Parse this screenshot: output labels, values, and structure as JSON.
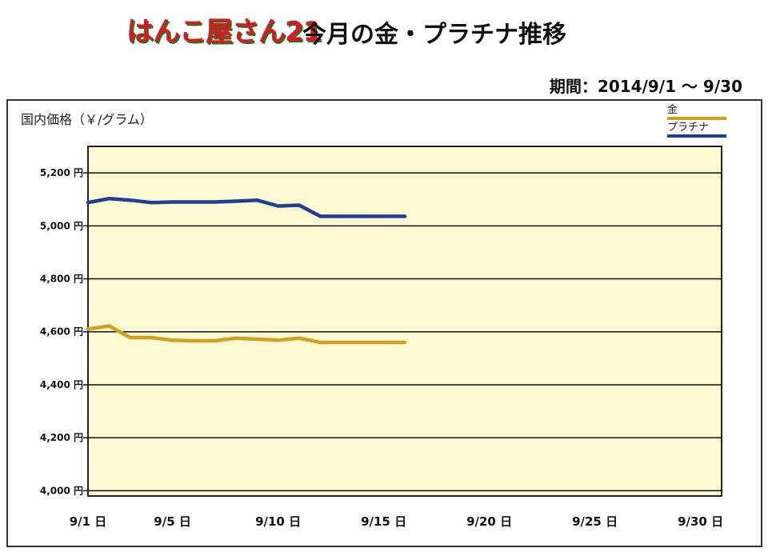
{
  "header": {
    "logo_text": "はんこ屋さん21",
    "title": "今月の金・プラチナ推移"
  },
  "period": "期間：2014/9/1 ～ 9/30",
  "chart_data": {
    "type": "line",
    "ylabel": "国内価格（￥/グラム）",
    "ylim": [
      3980,
      5300
    ],
    "y_ticks": [
      4000,
      4200,
      4400,
      4600,
      4800,
      5000,
      5200
    ],
    "y_tick_labels": [
      "4,000 円",
      "4,200 円",
      "4,400 円",
      "4,600 円",
      "4,800 円",
      "5,000 円",
      "5,200 円"
    ],
    "x_range": [
      1,
      31
    ],
    "x_ticks": [
      1,
      5,
      10,
      15,
      20,
      25,
      30
    ],
    "x_tick_labels": [
      "9/1 日",
      "9/5 日",
      "9/10 日",
      "9/15 日",
      "9/20 日",
      "9/25 日",
      "9/30 日"
    ],
    "grid": true,
    "legend_position": "top-right",
    "series": [
      {
        "name": "金",
        "color": "#d2a021",
        "x": [
          1,
          2,
          3,
          4,
          5,
          6,
          7,
          8,
          9,
          10,
          11,
          12,
          13,
          14,
          15,
          16
        ],
        "y": [
          4610,
          4622,
          4578,
          4578,
          4568,
          4566,
          4566,
          4576,
          4572,
          4568,
          4576,
          4560,
          4560,
          4560,
          4560,
          4560
        ]
      },
      {
        "name": "プラチナ",
        "color": "#1f3f95",
        "x": [
          1,
          2,
          3,
          4,
          5,
          6,
          7,
          8,
          9,
          10,
          11,
          12,
          13,
          14,
          15,
          16
        ],
        "y": [
          5088,
          5103,
          5097,
          5088,
          5090,
          5090,
          5090,
          5093,
          5097,
          5075,
          5078,
          5036,
          5036,
          5036,
          5036,
          5036
        ]
      }
    ]
  }
}
